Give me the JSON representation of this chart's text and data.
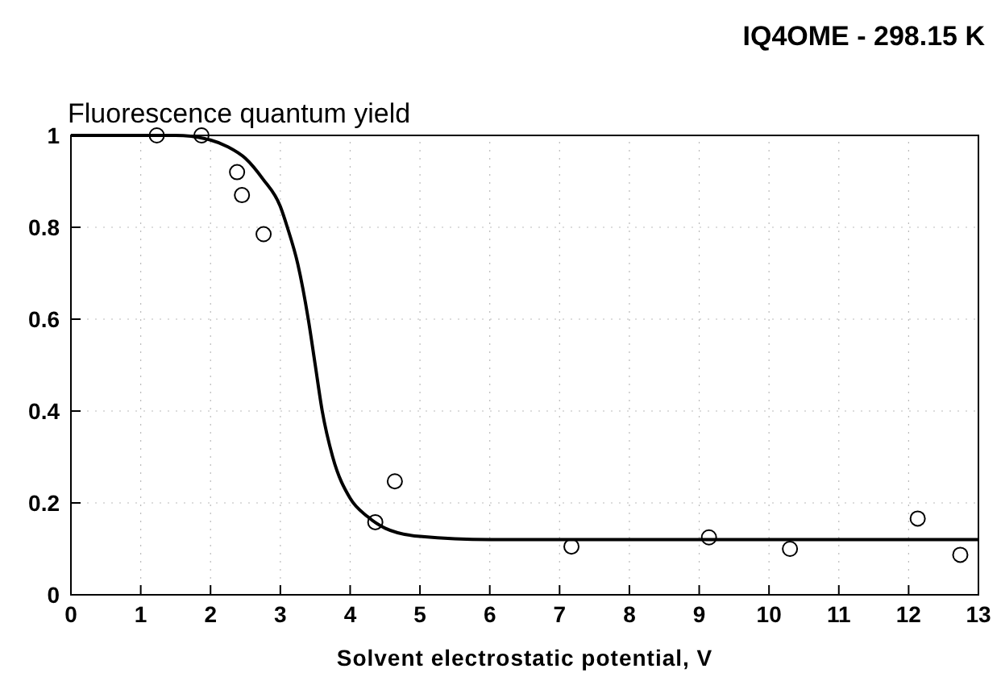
{
  "chart_data": {
    "type": "scatter",
    "title": "IQ4OME - 298.15 K",
    "ylabel": "Fluorescence quantum yield",
    "xlabel": "Solvent electrostatic potential, V",
    "xlim": [
      0,
      13
    ],
    "xticks": [
      0,
      1,
      2,
      3,
      4,
      5,
      6,
      7,
      8,
      9,
      10,
      11,
      12,
      13
    ],
    "ylim": [
      0,
      1
    ],
    "yticks": [
      0,
      0.2,
      0.4,
      0.6,
      0.8,
      1
    ],
    "grid": true,
    "marker": "circle",
    "series": [
      {
        "color": "#000000",
        "x": [
          1.23,
          1.87,
          2.38,
          2.45,
          2.76,
          4.36,
          4.64,
          7.17,
          9.14,
          10.3,
          12.13,
          12.74
        ],
        "values": [
          1.0,
          1.0,
          0.92,
          0.87,
          0.785,
          0.158,
          0.247,
          0.105,
          0.125,
          0.1,
          0.166,
          0.087
        ]
      },
      {
        "type": "line",
        "color": "#000000",
        "marker": "none",
        "line_style": "solid",
        "x": [
          0,
          1.5,
          2,
          2.25,
          2.5,
          2.75,
          3,
          3.1,
          3.25,
          3.4,
          3.5,
          3.6,
          3.75,
          4,
          4.25,
          4.5,
          5,
          6,
          13
        ],
        "values": [
          1,
          1,
          0.99,
          0.975,
          0.95,
          0.905,
          0.845,
          0.8,
          0.72,
          0.6,
          0.5,
          0.4,
          0.3,
          0.21,
          0.17,
          0.145,
          0.127,
          0.12,
          0.12
        ]
      }
    ]
  }
}
